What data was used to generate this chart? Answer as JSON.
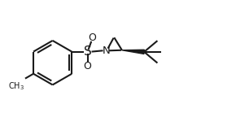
{
  "bg_color": "#ffffff",
  "line_color": "#1a1a1a",
  "line_width": 1.5,
  "font_size": 8.0,
  "figsize": [
    2.9,
    1.44
  ],
  "dpi": 100,
  "xlim": [
    -1,
    10
  ],
  "ylim": [
    0,
    5.5
  ]
}
